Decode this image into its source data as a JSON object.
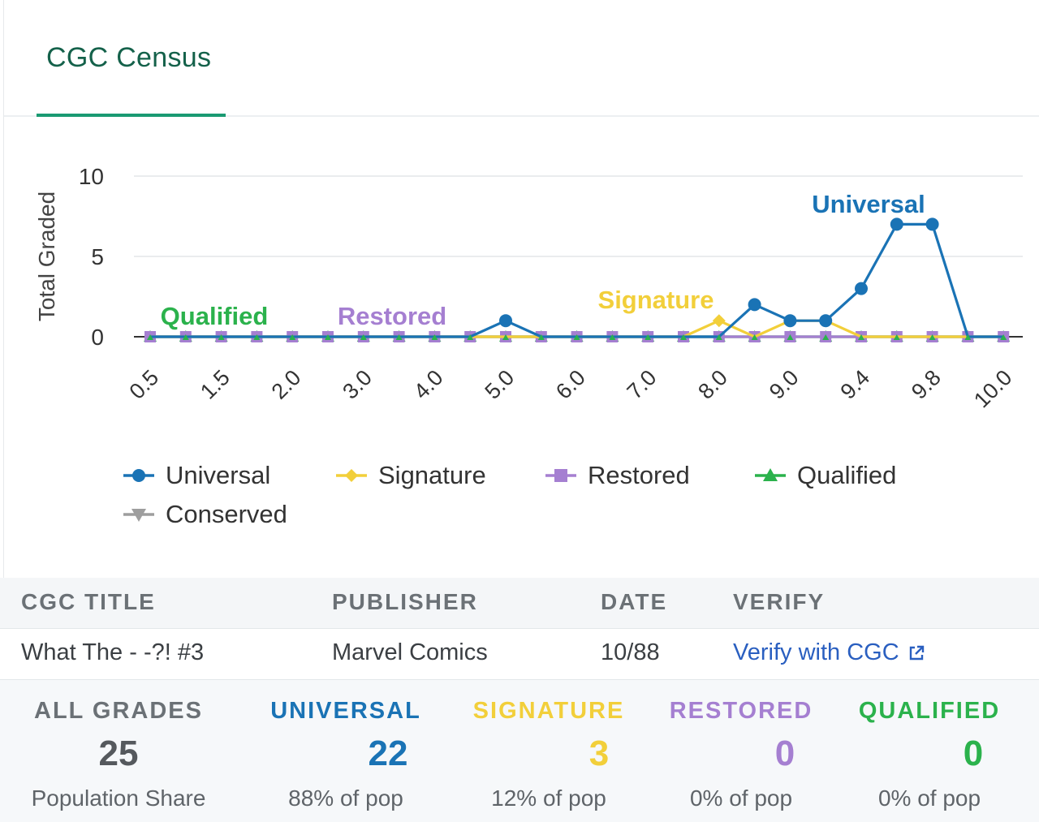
{
  "tab": {
    "label": "CGC Census"
  },
  "chart_data": {
    "type": "line",
    "ylabel": "Total Graded",
    "ylim": [
      0,
      10
    ],
    "yticks": [
      "10",
      "5",
      "0"
    ],
    "x": [
      "0.5",
      "1.0",
      "1.5",
      "1.8",
      "2.0",
      "2.5",
      "3.0",
      "3.5",
      "4.0",
      "4.5",
      "5.0",
      "5.5",
      "6.0",
      "6.5",
      "7.0",
      "7.5",
      "8.0",
      "8.5",
      "9.0",
      "9.2",
      "9.4",
      "9.6",
      "9.8",
      "9.9",
      "10.0"
    ],
    "xtick_labels": [
      "0.5",
      "1.5",
      "2.0",
      "3.0",
      "4.0",
      "5.0",
      "6.0",
      "7.0",
      "8.0",
      "9.0",
      "9.4",
      "9.8",
      "10.0"
    ],
    "series": [
      {
        "name": "Universal",
        "color": "#1a73b5",
        "marker": "circle",
        "values": [
          0,
          0,
          0,
          0,
          0,
          0,
          0,
          0,
          0,
          0,
          1,
          0,
          0,
          0,
          0,
          0,
          0,
          2,
          1,
          1,
          3,
          7,
          7,
          0,
          0
        ]
      },
      {
        "name": "Signature",
        "color": "#f2cf3a",
        "marker": "diamond",
        "values": [
          0,
          0,
          0,
          0,
          0,
          0,
          0,
          0,
          0,
          0,
          0,
          0,
          0,
          0,
          0,
          0,
          1,
          0,
          1,
          1,
          0,
          0,
          0,
          0,
          0
        ]
      },
      {
        "name": "Restored",
        "color": "#a57fd1",
        "marker": "square",
        "values": [
          0,
          0,
          0,
          0,
          0,
          0,
          0,
          0,
          0,
          0,
          0,
          0,
          0,
          0,
          0,
          0,
          0,
          0,
          0,
          0,
          0,
          0,
          0,
          0,
          0
        ]
      },
      {
        "name": "Qualified",
        "color": "#2bb24c",
        "marker": "triangle",
        "values": [
          0,
          0,
          0,
          0,
          0,
          0,
          0,
          0,
          0,
          0,
          0,
          0,
          0,
          0,
          0,
          0,
          0,
          0,
          0,
          0,
          0,
          0,
          0,
          0,
          0
        ]
      },
      {
        "name": "Conserved",
        "color": "#9e9e9e",
        "marker": "triangle-down",
        "values": [
          0,
          0,
          0,
          0,
          0,
          0,
          0,
          0,
          0,
          0,
          0,
          0,
          0,
          0,
          0,
          0,
          0,
          0,
          0,
          0,
          0,
          0,
          0,
          0,
          0
        ]
      }
    ],
    "annotations": [
      {
        "text": "Universal",
        "color": "#1a73b5"
      },
      {
        "text": "Signature",
        "color": "#f2cf3a"
      },
      {
        "text": "Restored",
        "color": "#a57fd1"
      },
      {
        "text": "Qualified",
        "color": "#2bb24c"
      }
    ],
    "grid": true,
    "legend": "bottom"
  },
  "table": {
    "headers": {
      "title": "CGC TITLE",
      "publisher": "PUBLISHER",
      "date": "DATE",
      "verify": "VERIFY"
    },
    "row": {
      "title": "What The - -?! #3",
      "publisher": "Marvel Comics",
      "date": "10/88",
      "verify": "Verify with CGC"
    },
    "verify_icon": "external-link-icon"
  },
  "stats": [
    {
      "label": "ALL GRADES",
      "value": "25",
      "sub": "Population Share",
      "color": "#6b7176",
      "value_color": "#55595d"
    },
    {
      "label": "UNIVERSAL",
      "value": "22",
      "sub": "88% of pop",
      "color": "#1a73b5",
      "value_color": "#1a73b5"
    },
    {
      "label": "SIGNATURE",
      "value": "3",
      "sub": "12% of pop",
      "color": "#f2cf3a",
      "value_color": "#f2cf3a"
    },
    {
      "label": "RESTORED",
      "value": "0",
      "sub": "0% of pop",
      "color": "#a57fd1",
      "value_color": "#a57fd1"
    },
    {
      "label": "QUALIFIED",
      "value": "0",
      "sub": "0% of pop",
      "color": "#2bb24c",
      "value_color": "#2bb24c"
    }
  ]
}
